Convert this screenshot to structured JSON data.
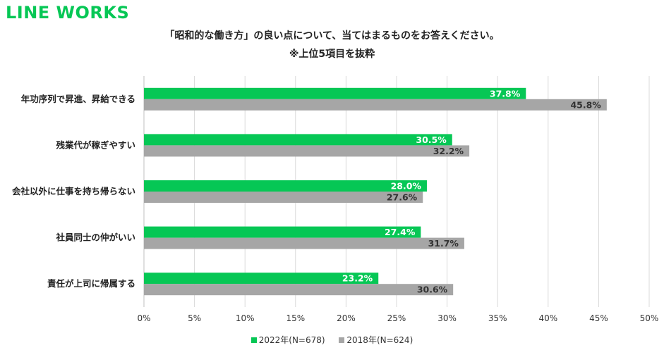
{
  "logo": "LINE WORKS",
  "chart_data": {
    "type": "bar",
    "orientation": "horizontal",
    "title": "「昭和的な働き方」の良い点について、当てはまるものをお答えください。",
    "subtitle": "※上位5項目を抜粋",
    "categories": [
      "年功序列で昇進、昇給できる",
      "残業代が稼ぎやすい",
      "会社以外に仕事を持ち帰らない",
      "社員同士の仲がいい",
      "責任が上司に帰属する"
    ],
    "series": [
      {
        "name": "2022年(N=678)",
        "color": "#06c755",
        "values": [
          37.8,
          30.5,
          28.0,
          27.4,
          23.2
        ],
        "labels": [
          "37.8%",
          "30.5%",
          "28.0%",
          "27.4%",
          "23.2%"
        ]
      },
      {
        "name": "2018年(N=624)",
        "color": "#a6a6a6",
        "values": [
          45.8,
          32.2,
          27.6,
          31.7,
          30.6
        ],
        "labels": [
          "45.8%",
          "32.2%",
          "27.6%",
          "31.7%",
          "30.6%"
        ]
      }
    ],
    "xlim": [
      0,
      50
    ],
    "xticks": [
      "0%",
      "5%",
      "10%",
      "15%",
      "20%",
      "25%",
      "30%",
      "35%",
      "40%",
      "45%",
      "50%"
    ],
    "grid": true,
    "legend_position": "bottom"
  }
}
